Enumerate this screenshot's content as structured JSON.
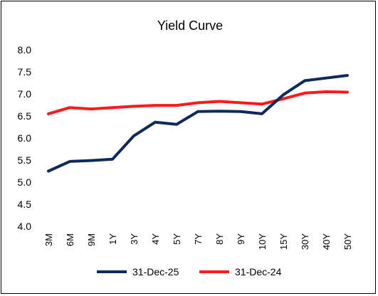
{
  "chart_data": {
    "type": "line",
    "title": "Yield Curve",
    "xlabel": "",
    "ylabel": "",
    "categories": [
      "3M",
      "6M",
      "9M",
      "1Y",
      "3Y",
      "4Y",
      "5Y",
      "7Y",
      "8Y",
      "9Y",
      "10Y",
      "15Y",
      "30Y",
      "40Y",
      "50Y"
    ],
    "ylim": [
      4.0,
      8.0
    ],
    "yticks": [
      "4.0",
      "4.5",
      "5.0",
      "5.5",
      "6.0",
      "6.5",
      "7.0",
      "7.5",
      "8.0"
    ],
    "grid": false,
    "legend_position": "bottom",
    "series": [
      {
        "name": "31-Dec-25",
        "color": "#0d2a5c",
        "values": [
          5.25,
          5.47,
          5.49,
          5.52,
          6.05,
          6.36,
          6.31,
          6.6,
          6.61,
          6.6,
          6.55,
          6.98,
          7.3,
          7.36,
          7.42
        ]
      },
      {
        "name": "31-Dec-24",
        "color": "#ff1a1a",
        "values": [
          6.55,
          6.69,
          6.66,
          6.69,
          6.72,
          6.74,
          6.74,
          6.8,
          6.83,
          6.8,
          6.77,
          6.89,
          7.02,
          7.05,
          7.04
        ]
      }
    ]
  }
}
